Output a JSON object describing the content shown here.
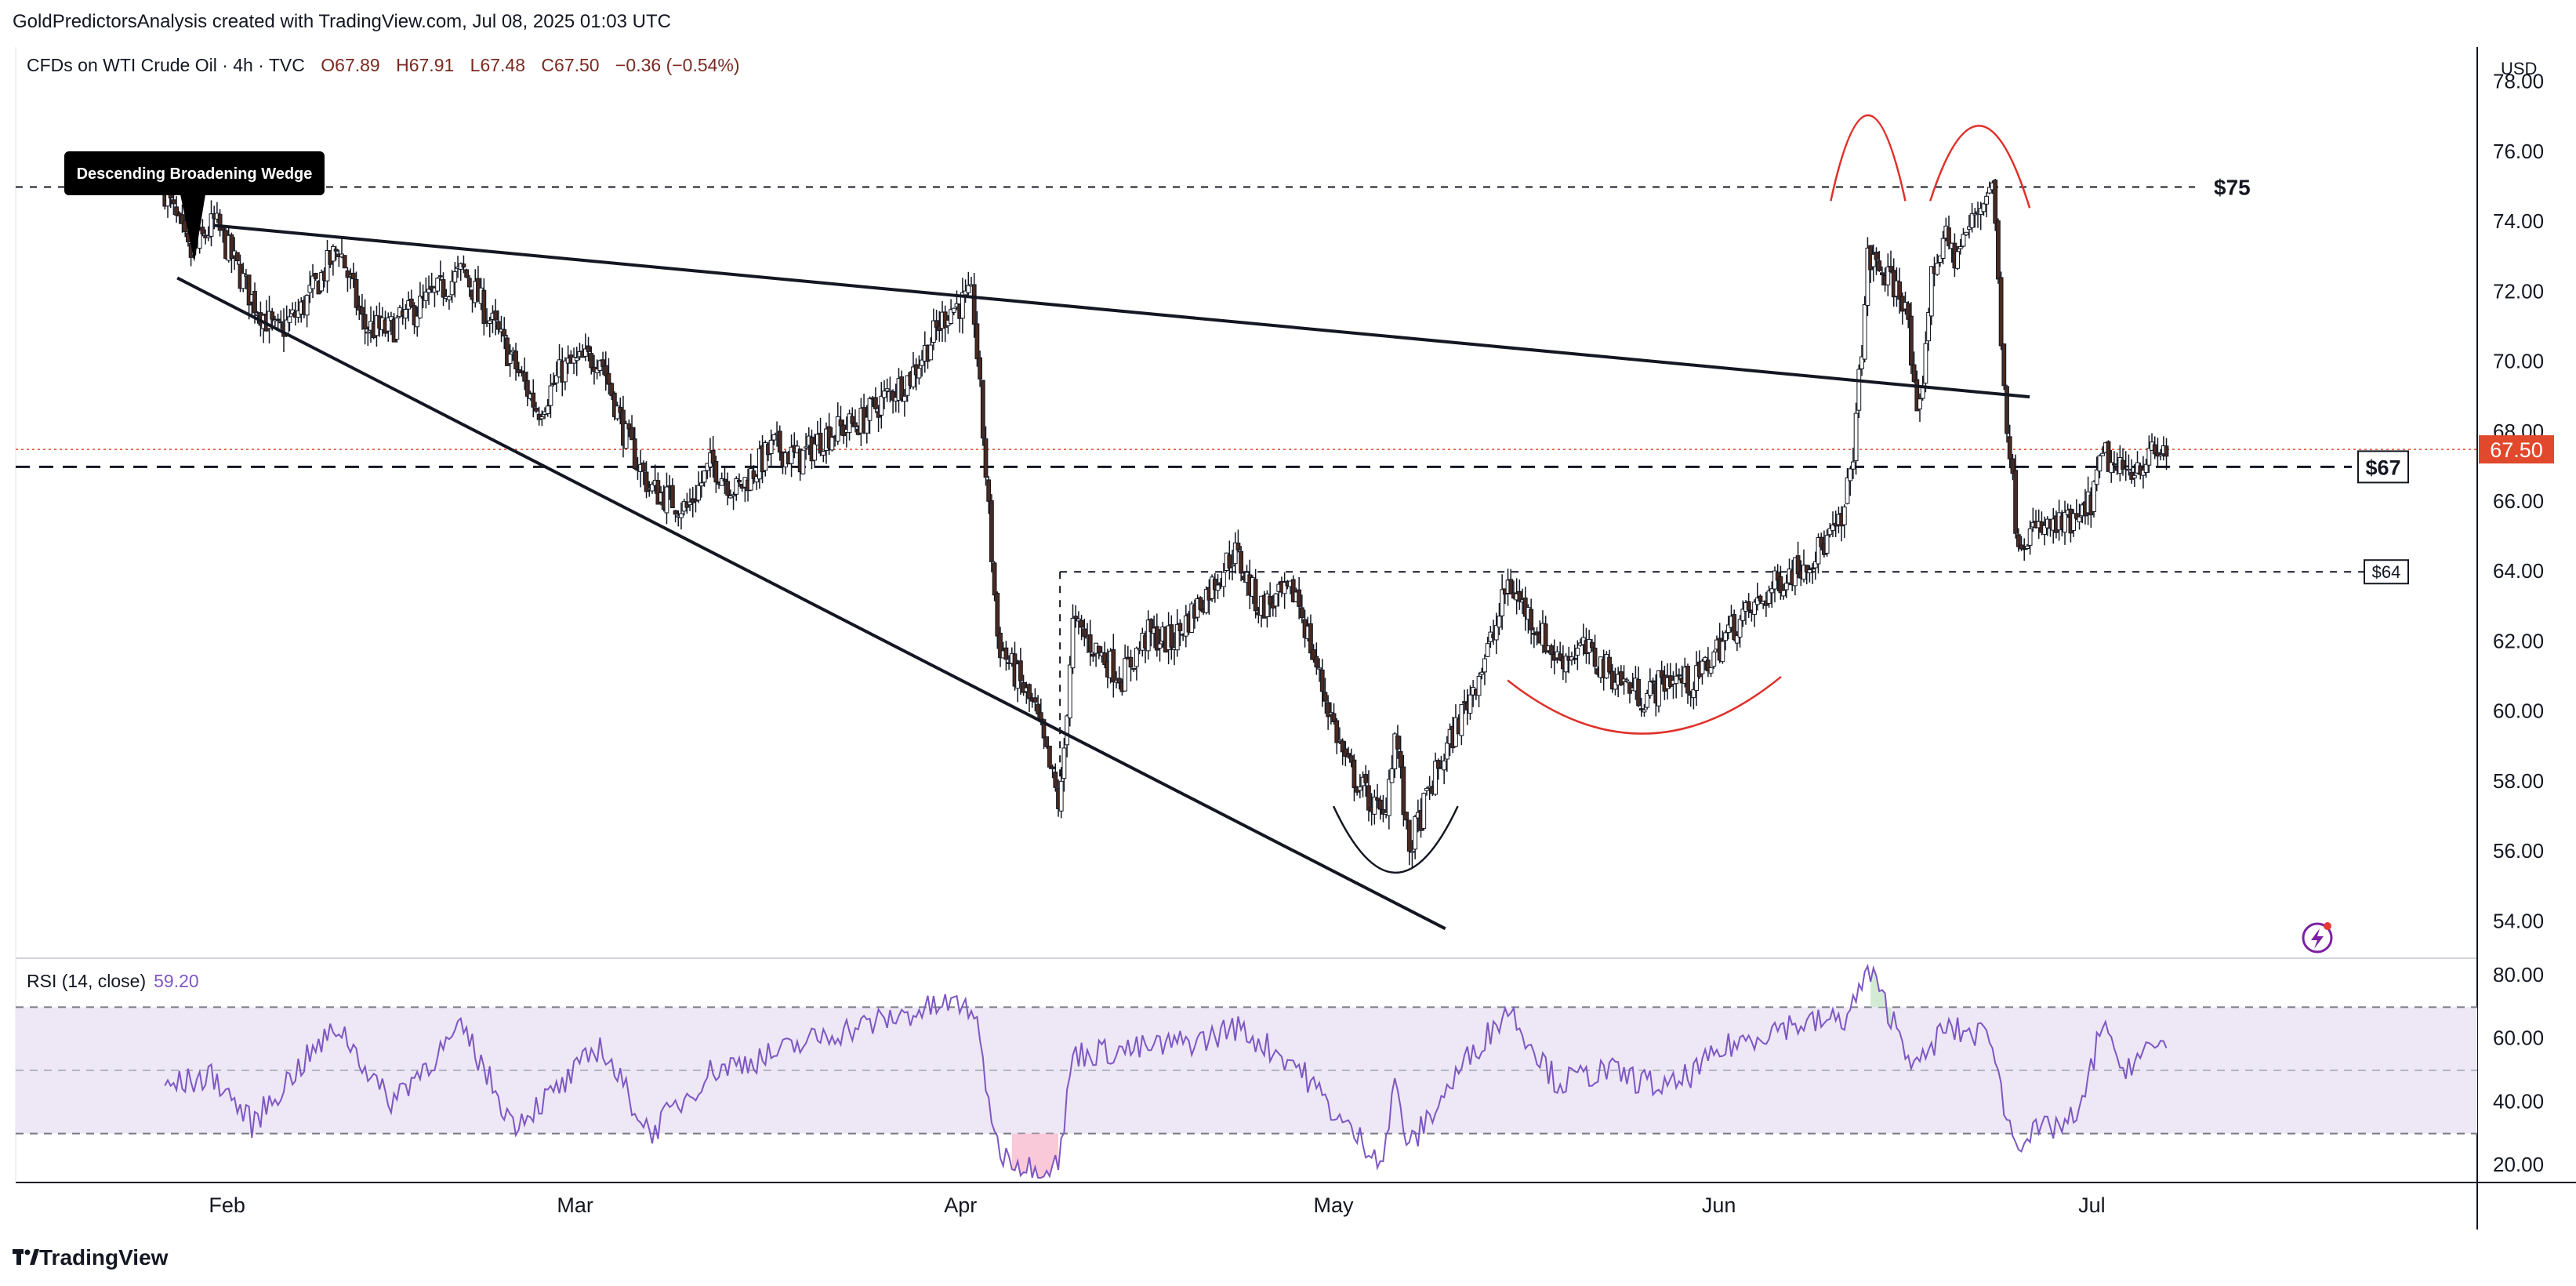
{
  "header": {
    "credit": "GoldPredictorsAnalysis created with TradingView.com, Jul 08, 2025 01:03 UTC"
  },
  "legend": {
    "symbol": "CFDs on WTI Crude Oil · 4h · TVC",
    "open": "O67.89",
    "high": "H67.91",
    "low": "L67.48",
    "close": "C67.50",
    "change": "−0.36 (−0.54%)"
  },
  "rsi_legend": {
    "label": "RSI (14, close)",
    "value": "59.20"
  },
  "footer": {
    "brand": "TradingView"
  },
  "colors": {
    "up": "#26a69a",
    "down": "#7a2a20",
    "candle_up_fill": "#ffffff",
    "candle_down_fill": "#4a2a20",
    "rsi_line": "#7e57c2",
    "rsi_band": "#ede7f6",
    "price_badge": "#e0492c",
    "pattern": "#e0302a",
    "trendline": "#131722"
  },
  "chart_data": [
    {
      "type": "candlestick",
      "interval": "4h",
      "currency": "USD",
      "ylim": [
        53,
        79
      ],
      "y_ticks": [
        "54.00",
        "56.00",
        "58.00",
        "60.00",
        "62.00",
        "64.00",
        "66.00",
        "68.00",
        "70.00",
        "72.00",
        "74.00",
        "76.00",
        "78.00"
      ],
      "x_ticks": [
        "Feb",
        "Mar",
        "Apr",
        "May",
        "Jun",
        "Jul"
      ],
      "last_price": "67.50",
      "annotations": {
        "wedge_label": "Descending Broadening Wedge",
        "level_75": "$75",
        "level_67": "$67",
        "level_64": "$64",
        "levels": [
          75,
          67,
          64
        ]
      },
      "close_path": [
        [
          "Jan 27",
          74.9
        ],
        [
          "Jan 29",
          73.0
        ],
        [
          "Jan 31",
          74.0
        ],
        [
          "Feb 03",
          71.8
        ],
        [
          "Feb 05",
          70.8
        ],
        [
          "Feb 07",
          71.5
        ],
        [
          "Feb 10",
          73.3
        ],
        [
          "Feb 12",
          71.0
        ],
        [
          "Feb 14",
          70.9
        ],
        [
          "Feb 18",
          72.0
        ],
        [
          "Feb 20",
          72.6
        ],
        [
          "Feb 24",
          70.0
        ],
        [
          "Feb 26",
          68.6
        ],
        [
          "Feb 28",
          69.8
        ],
        [
          "Mar 03",
          70.2
        ],
        [
          "Mar 05",
          67.9
        ],
        [
          "Mar 07",
          66.4
        ],
        [
          "Mar 10",
          65.8
        ],
        [
          "Mar 12",
          67.1
        ],
        [
          "Mar 14",
          66.3
        ],
        [
          "Mar 17",
          67.6
        ],
        [
          "Mar 19",
          67.2
        ],
        [
          "Mar 21",
          67.9
        ],
        [
          "Mar 24",
          68.3
        ],
        [
          "Mar 26",
          69.0
        ],
        [
          "Mar 28",
          69.6
        ],
        [
          "Mar 31",
          71.5
        ],
        [
          "Apr 02",
          71.8
        ],
        [
          "Apr 03",
          67.0
        ],
        [
          "Apr 04",
          62.0
        ],
        [
          "Apr 07",
          60.0
        ],
        [
          "Apr 09",
          57.2
        ],
        [
          "Apr 10",
          62.5
        ],
        [
          "Apr 14",
          61.0
        ],
        [
          "Apr 16",
          62.2
        ],
        [
          "Apr 18",
          62.0
        ],
        [
          "Apr 21",
          63.5
        ],
        [
          "Apr 23",
          64.6
        ],
        [
          "Apr 25",
          63.0
        ],
        [
          "Apr 28",
          63.4
        ],
        [
          "Apr 30",
          60.8
        ],
        [
          "May 02",
          58.5
        ],
        [
          "May 05",
          56.9
        ],
        [
          "May 06",
          59.5
        ],
        [
          "May 07",
          56.0
        ],
        [
          "May 09",
          58.0
        ],
        [
          "May 12",
          60.5
        ],
        [
          "May 14",
          62.3
        ],
        [
          "May 15",
          63.7
        ],
        [
          "May 19",
          61.5
        ],
        [
          "May 21",
          61.8
        ],
        [
          "May 23",
          61.2
        ],
        [
          "May 26",
          60.4
        ],
        [
          "May 28",
          61.0
        ],
        [
          "May 30",
          60.8
        ],
        [
          "Jun 02",
          62.4
        ],
        [
          "Jun 04",
          63.0
        ],
        [
          "Jun 06",
          63.8
        ],
        [
          "Jun 09",
          64.6
        ],
        [
          "Jun 11",
          65.4
        ],
        [
          "Jun 12",
          68.1
        ],
        [
          "Jun 13",
          73.0
        ],
        [
          "Jun 16",
          71.8
        ],
        [
          "Jun 17",
          67.9
        ],
        [
          "Jun 18",
          72.2
        ],
        [
          "Jun 19",
          73.6
        ],
        [
          "Jun 20",
          73.0
        ],
        [
          "Jun 23",
          75.2
        ],
        [
          "Jun 24",
          69.0
        ],
        [
          "Jun 25",
          65.0
        ],
        [
          "Jun 27",
          65.2
        ],
        [
          "Jun 30",
          65.4
        ],
        [
          "Jul 01",
          66.1
        ],
        [
          "Jul 02",
          67.4
        ],
        [
          "Jul 03",
          66.8
        ],
        [
          "Jul 07",
          67.5
        ]
      ]
    },
    {
      "type": "line",
      "name": "RSI (14, close)",
      "ylim": [
        15,
        85
      ],
      "y_ticks": [
        "20.00",
        "40.00",
        "60.00",
        "80.00"
      ],
      "bands": [
        70,
        50,
        30
      ],
      "rsi_path": [
        [
          "Jan 27",
          45
        ],
        [
          "Jan 31",
          48
        ],
        [
          "Feb 03",
          33
        ],
        [
          "Feb 07",
          52
        ],
        [
          "Feb 10",
          64
        ],
        [
          "Feb 14",
          40
        ],
        [
          "Feb 20",
          63
        ],
        [
          "Feb 24",
          33
        ],
        [
          "Feb 28",
          45
        ],
        [
          "Mar 03",
          58
        ],
        [
          "Mar 07",
          30
        ],
        [
          "Mar 12",
          50
        ],
        [
          "Mar 17",
          55
        ],
        [
          "Mar 21",
          61
        ],
        [
          "Mar 26",
          66
        ],
        [
          "Mar 31",
          71
        ],
        [
          "Apr 02",
          70
        ],
        [
          "Apr 04",
          25
        ],
        [
          "Apr 07",
          18
        ],
        [
          "Apr 09",
          22
        ],
        [
          "Apr 10",
          55
        ],
        [
          "Apr 16",
          57
        ],
        [
          "Apr 21",
          60
        ],
        [
          "Apr 23",
          64
        ],
        [
          "Apr 28",
          52
        ],
        [
          "May 02",
          32
        ],
        [
          "May 05",
          22
        ],
        [
          "May 06",
          47
        ],
        [
          "May 07",
          25
        ],
        [
          "May 12",
          55
        ],
        [
          "May 14",
          64
        ],
        [
          "May 15",
          70
        ],
        [
          "May 19",
          46
        ],
        [
          "May 23",
          50
        ],
        [
          "May 28",
          44
        ],
        [
          "Jun 02",
          58
        ],
        [
          "Jun 06",
          64
        ],
        [
          "Jun 11",
          66
        ],
        [
          "Jun 12",
          72
        ],
        [
          "Jun 13",
          82
        ],
        [
          "Jun 17",
          50
        ],
        [
          "Jun 19",
          63
        ],
        [
          "Jun 23",
          61
        ],
        [
          "Jun 24",
          36
        ],
        [
          "Jun 25",
          28
        ],
        [
          "Jun 30",
          35
        ],
        [
          "Jul 02",
          68
        ],
        [
          "Jul 03",
          50
        ],
        [
          "Jul 07",
          59.2
        ]
      ]
    }
  ]
}
